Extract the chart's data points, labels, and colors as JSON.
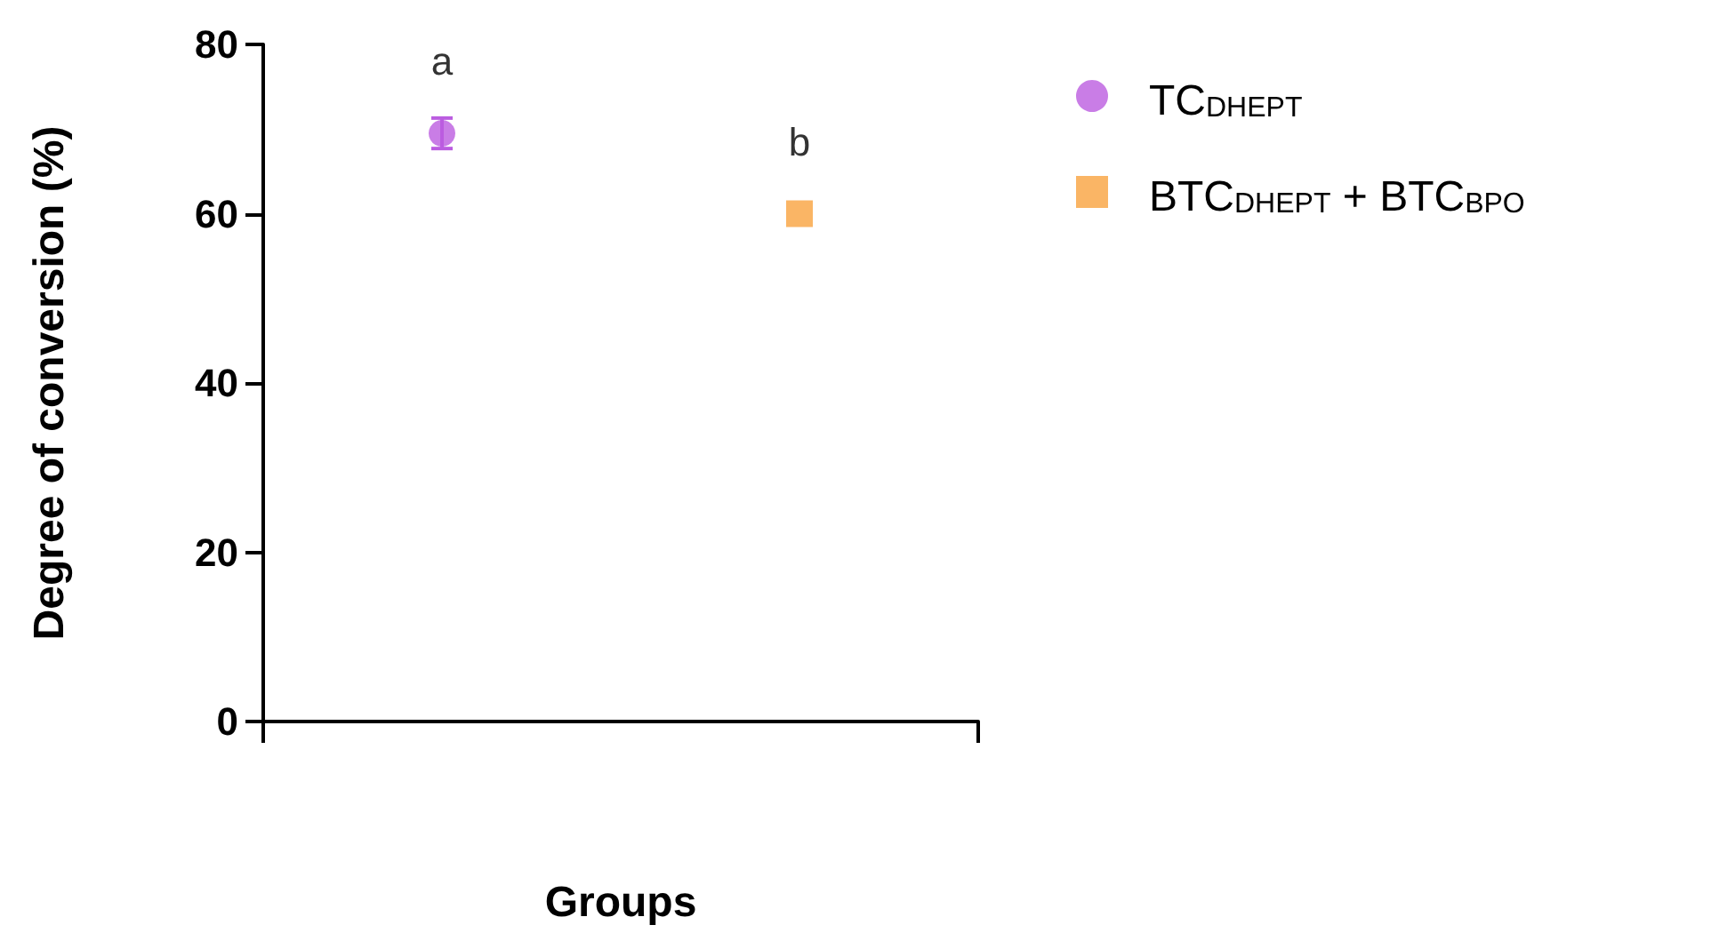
{
  "chart_data": {
    "type": "scatter",
    "xlabel": "Groups",
    "ylabel": "Degree of conversion (%)",
    "categories": [
      null,
      null
    ],
    "ylim": [
      0,
      80
    ],
    "yticks": [
      0,
      20,
      40,
      60,
      80
    ],
    "grid": false,
    "legend": "right",
    "series": [
      {
        "name": "TC$_{DHEPT}$",
        "color": "#bb5de0",
        "marker": "circle",
        "values": [
          69.5,
          null
        ],
        "errors": [
          1.8,
          null
        ],
        "value_labels": [
          "a",
          null
        ]
      },
      {
        "name": "BTC$_{DHEPT}$ + BTC$_{BPO}$",
        "color": "#f9a33f",
        "marker": "square",
        "values": [
          null,
          60
        ],
        "errors": [
          null,
          null
        ],
        "value_labels": [
          null,
          "b"
        ]
      }
    ]
  }
}
